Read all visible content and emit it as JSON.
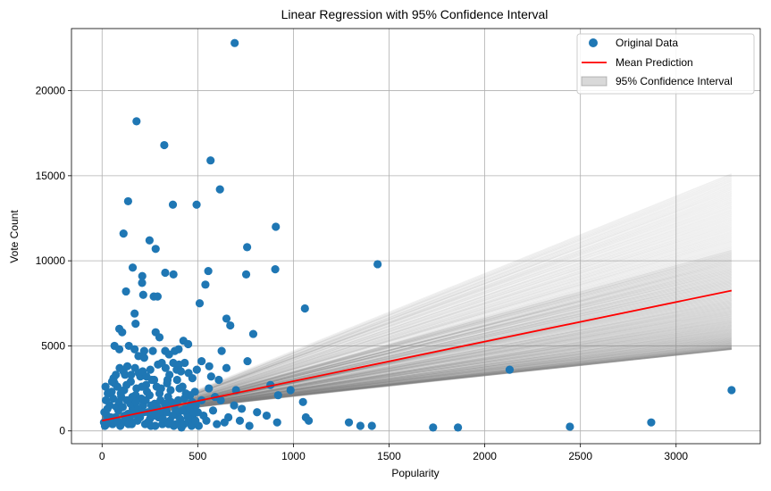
{
  "chart_data": {
    "type": "scatter",
    "title": "Linear Regression with 95% Confidence Interval",
    "xlabel": "Popularity",
    "ylabel": "Vote Count",
    "xlim": [
      -160,
      3440
    ],
    "ylim": [
      -750,
      23650
    ],
    "x_ticks": [
      0,
      500,
      1000,
      1500,
      2000,
      2500,
      3000
    ],
    "y_ticks": [
      0,
      5000,
      10000,
      15000,
      20000
    ],
    "x_tick_labels": [
      "0",
      "500",
      "1000",
      "1500",
      "2000",
      "2500",
      "3000"
    ],
    "y_tick_labels": [
      "0",
      "5000",
      "10000",
      "15000",
      "20000"
    ],
    "grid": true,
    "legend_position": "top-right",
    "legend": [
      {
        "label": "Original Data",
        "marker": "circle",
        "color": "#1f77b4"
      },
      {
        "label": "Mean Prediction",
        "marker": "line",
        "color": "#ff0000"
      },
      {
        "label": "95% Confidence Interval",
        "marker": "patch",
        "color": "#808080"
      }
    ],
    "colors": {
      "points": "#1f77b4",
      "mean": "#ff0000",
      "band": "#808080"
    },
    "series": [
      {
        "name": "Original Data",
        "kind": "points",
        "points": [
          [
            693,
            22800
          ],
          [
            180,
            18200
          ],
          [
            325,
            16800
          ],
          [
            567,
            15900
          ],
          [
            616,
            14200
          ],
          [
            136,
            13500
          ],
          [
            370,
            13300
          ],
          [
            494,
            13300
          ],
          [
            908,
            12000
          ],
          [
            112,
            11600
          ],
          [
            248,
            11200
          ],
          [
            280,
            10700
          ],
          [
            758,
            10800
          ],
          [
            1440,
            9800
          ],
          [
            160,
            9600
          ],
          [
            210,
            9100
          ],
          [
            330,
            9300
          ],
          [
            373,
            9200
          ],
          [
            555,
            9400
          ],
          [
            753,
            9200
          ],
          [
            905,
            9500
          ],
          [
            209,
            8700
          ],
          [
            540,
            8600
          ],
          [
            125,
            8200
          ],
          [
            215,
            8000
          ],
          [
            270,
            7900
          ],
          [
            290,
            7900
          ],
          [
            510,
            7500
          ],
          [
            1060,
            7200
          ],
          [
            170,
            6900
          ],
          [
            650,
            6600
          ],
          [
            175,
            6300
          ],
          [
            90,
            6000
          ],
          [
            105,
            5800
          ],
          [
            280,
            5800
          ],
          [
            300,
            5500
          ],
          [
            670,
            6200
          ],
          [
            790,
            5700
          ],
          [
            65,
            5000
          ],
          [
            90,
            4800
          ],
          [
            140,
            5000
          ],
          [
            170,
            4800
          ],
          [
            220,
            4700
          ],
          [
            265,
            4700
          ],
          [
            330,
            4700
          ],
          [
            380,
            4700
          ],
          [
            400,
            4800
          ],
          [
            425,
            5300
          ],
          [
            450,
            5100
          ],
          [
            520,
            4100
          ],
          [
            625,
            4700
          ],
          [
            760,
            4100
          ],
          [
            190,
            4400
          ],
          [
            220,
            4300
          ],
          [
            350,
            4500
          ],
          [
            495,
            3600
          ],
          [
            560,
            3800
          ],
          [
            650,
            3700
          ],
          [
            880,
            2700
          ],
          [
            985,
            2400
          ],
          [
            1050,
            1700
          ],
          [
            1065,
            800
          ],
          [
            1080,
            600
          ],
          [
            1290,
            500
          ],
          [
            1350,
            300
          ],
          [
            1410,
            300
          ],
          [
            1730,
            200
          ],
          [
            1860,
            200
          ],
          [
            2130,
            3600
          ],
          [
            2445,
            250
          ],
          [
            2870,
            500
          ],
          [
            3290,
            2400
          ],
          [
            640,
            500
          ],
          [
            770,
            300
          ],
          [
            915,
            500
          ],
          [
            30,
            2200
          ],
          [
            60,
            3100
          ],
          [
            80,
            2600
          ],
          [
            100,
            2000
          ],
          [
            120,
            3300
          ],
          [
            150,
            2900
          ],
          [
            180,
            2500
          ],
          [
            200,
            3200
          ],
          [
            230,
            2700
          ],
          [
            260,
            3000
          ],
          [
            300,
            2200
          ],
          [
            340,
            2800
          ],
          [
            390,
            3600
          ],
          [
            420,
            2600
          ],
          [
            460,
            2100
          ],
          [
            490,
            1500
          ],
          [
            530,
            900
          ],
          [
            580,
            1200
          ],
          [
            700,
            2400
          ],
          [
            810,
            1100
          ],
          [
            860,
            900
          ],
          [
            15,
            300
          ],
          [
            25,
            900
          ],
          [
            40,
            1500
          ],
          [
            55,
            400
          ],
          [
            70,
            800
          ],
          [
            85,
            1200
          ],
          [
            110,
            500
          ],
          [
            130,
            1800
          ],
          [
            145,
            700
          ],
          [
            160,
            1300
          ],
          [
            185,
            600
          ],
          [
            205,
            1900
          ],
          [
            225,
            400
          ],
          [
            240,
            1100
          ],
          [
            255,
            300
          ],
          [
            275,
            1600
          ],
          [
            295,
            800
          ],
          [
            315,
            400
          ],
          [
            335,
            1400
          ],
          [
            355,
            600
          ],
          [
            375,
            300
          ],
          [
            395,
            900
          ],
          [
            415,
            200
          ],
          [
            435,
            1300
          ],
          [
            455,
            500
          ],
          [
            475,
            800
          ],
          [
            505,
            300
          ],
          [
            545,
            600
          ],
          [
            600,
            400
          ],
          [
            660,
            800
          ],
          [
            720,
            600
          ],
          [
            20,
            1800
          ],
          [
            35,
            600
          ],
          [
            50,
            2300
          ],
          [
            75,
            1400
          ],
          [
            95,
            300
          ],
          [
            115,
            2400
          ],
          [
            135,
            1000
          ],
          [
            155,
            400
          ],
          [
            175,
            2100
          ],
          [
            195,
            1000
          ],
          [
            215,
            1500
          ],
          [
            235,
            2300
          ],
          [
            250,
            700
          ],
          [
            265,
            1200
          ],
          [
            285,
            2600
          ],
          [
            305,
            1800
          ],
          [
            320,
            1100
          ],
          [
            345,
            2000
          ],
          [
            360,
            1700
          ],
          [
            385,
            1200
          ],
          [
            405,
            2500
          ],
          [
            430,
            1900
          ],
          [
            445,
            1000
          ],
          [
            470,
            1700
          ],
          [
            485,
            2300
          ],
          [
            500,
            1100
          ],
          [
            520,
            1800
          ],
          [
            10,
            500
          ],
          [
            12,
            1100
          ],
          [
            18,
            2600
          ],
          [
            22,
            400
          ],
          [
            28,
            1300
          ],
          [
            45,
            800
          ],
          [
            58,
            1900
          ],
          [
            65,
            2800
          ],
          [
            78,
            600
          ],
          [
            88,
            1700
          ],
          [
            98,
            2200
          ],
          [
            108,
            1400
          ],
          [
            118,
            900
          ],
          [
            128,
            2700
          ],
          [
            138,
            400
          ],
          [
            148,
            1600
          ],
          [
            158,
            2000
          ],
          [
            168,
            1000
          ],
          [
            178,
            1700
          ],
          [
            188,
            1300
          ],
          [
            198,
            800
          ],
          [
            208,
            2600
          ],
          [
            218,
            1100
          ],
          [
            228,
            1800
          ],
          [
            238,
            500
          ],
          [
            248,
            2100
          ],
          [
            258,
            1500
          ],
          [
            268,
            900
          ],
          [
            278,
            300
          ],
          [
            288,
            1400
          ],
          [
            298,
            1000
          ],
          [
            308,
            2500
          ],
          [
            318,
            700
          ],
          [
            328,
            1600
          ],
          [
            338,
            1100
          ],
          [
            348,
            400
          ],
          [
            358,
            2400
          ],
          [
            368,
            900
          ],
          [
            378,
            1500
          ],
          [
            388,
            400
          ],
          [
            398,
            1800
          ],
          [
            408,
            700
          ],
          [
            418,
            1200
          ],
          [
            428,
            400
          ],
          [
            438,
            2200
          ],
          [
            448,
            800
          ],
          [
            458,
            1400
          ],
          [
            468,
            300
          ],
          [
            478,
            1100
          ],
          [
            488,
            600
          ],
          [
            558,
            2500
          ],
          [
            590,
            2000
          ],
          [
            620,
            1800
          ],
          [
            690,
            1500
          ],
          [
            730,
            1300
          ],
          [
            52,
            2900
          ],
          [
            72,
            3300
          ],
          [
            92,
            3700
          ],
          [
            112,
            3500
          ],
          [
            132,
            3800
          ],
          [
            152,
            3300
          ],
          [
            172,
            3700
          ],
          [
            192,
            3400
          ],
          [
            212,
            3500
          ],
          [
            232,
            3200
          ],
          [
            252,
            3600
          ],
          [
            272,
            3000
          ],
          [
            292,
            3900
          ],
          [
            312,
            4000
          ],
          [
            332,
            3700
          ],
          [
            352,
            3300
          ],
          [
            372,
            4000
          ],
          [
            392,
            3000
          ],
          [
            412,
            3500
          ],
          [
            432,
            4000
          ],
          [
            452,
            3400
          ],
          [
            472,
            3100
          ],
          [
            342,
            3000
          ],
          [
            402,
            3900
          ],
          [
            570,
            3200
          ],
          [
            610,
            3000
          ],
          [
            920,
            2100
          ]
        ]
      },
      {
        "name": "Mean Prediction",
        "kind": "line",
        "x": [
          0,
          3290
        ],
        "y": [
          600,
          8250
        ]
      },
      {
        "name": "95% Confidence Interval",
        "kind": "band",
        "x": [
          0,
          3290
        ],
        "y_low": [
          900,
          4800
        ],
        "y_high": [
          100,
          15100
        ]
      }
    ]
  }
}
